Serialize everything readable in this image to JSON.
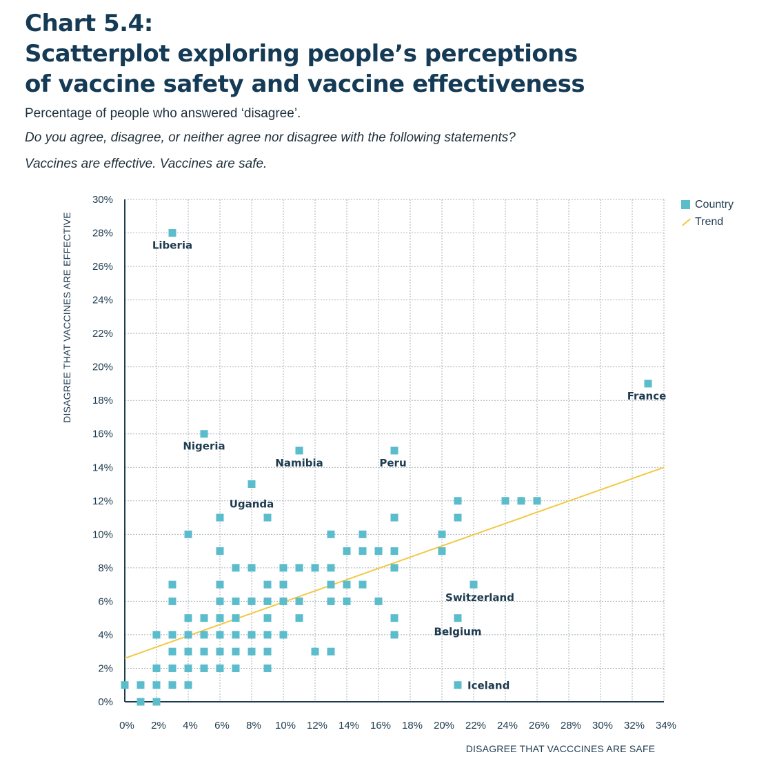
{
  "header": {
    "chart_number": "Chart 5.4:",
    "title_line1": "Scatterplot exploring people’s perceptions",
    "title_line2": "of vaccine safety and vaccine effectiveness",
    "subtitle": "Percentage of people who answered ‘disagree’.",
    "question": "Do you agree, disagree, or neither agree nor disagree with the following statements?",
    "statements": "Vaccines are effective. Vaccines are safe."
  },
  "legend": {
    "country": "Country",
    "trend": "Trend"
  },
  "colors": {
    "point": "#5bbccb",
    "trend": "#f2c844",
    "grid": "#a9b2b9",
    "axis": "#1d3a4f"
  },
  "chart_data": {
    "type": "scatter",
    "xlabel": "DISAGREE THAT VACCCINES ARE SAFE",
    "ylabel": "DISAGREE THAT VACCINES ARE EFFECTIVE",
    "xlim": [
      0,
      34
    ],
    "ylim": [
      0,
      30
    ],
    "x_ticks": [
      "0%",
      "2%",
      "4%",
      "6%",
      "8%",
      "10%",
      "12%",
      "14%",
      "16%",
      "18%",
      "20%",
      "22%",
      "24%",
      "26%",
      "28%",
      "30%",
      "32%",
      "34%"
    ],
    "y_ticks": [
      "0%",
      "2%",
      "4%",
      "6%",
      "8%",
      "10%",
      "12%",
      "14%",
      "16%",
      "18%",
      "20%",
      "22%",
      "24%",
      "26%",
      "28%",
      "30%"
    ],
    "grid": true,
    "legend_position": "top-right",
    "series": [
      {
        "name": "Country",
        "points": [
          [
            0,
            1
          ],
          [
            1,
            1
          ],
          [
            2,
            1
          ],
          [
            3,
            1
          ],
          [
            4,
            1
          ],
          [
            1,
            0
          ],
          [
            2,
            0
          ],
          [
            2,
            2
          ],
          [
            3,
            2
          ],
          [
            4,
            2
          ],
          [
            5,
            2
          ],
          [
            6,
            2
          ],
          [
            7,
            2
          ],
          [
            9,
            2
          ],
          [
            3,
            3
          ],
          [
            4,
            3
          ],
          [
            5,
            3
          ],
          [
            6,
            3
          ],
          [
            7,
            3
          ],
          [
            8,
            3
          ],
          [
            9,
            3
          ],
          [
            12,
            3
          ],
          [
            13,
            3
          ],
          [
            2,
            4
          ],
          [
            3,
            4
          ],
          [
            4,
            4
          ],
          [
            5,
            4
          ],
          [
            6,
            4
          ],
          [
            7,
            4
          ],
          [
            8,
            4
          ],
          [
            9,
            4
          ],
          [
            10,
            4
          ],
          [
            17,
            4
          ],
          [
            4,
            5
          ],
          [
            5,
            5
          ],
          [
            6,
            5
          ],
          [
            7,
            5
          ],
          [
            9,
            5
          ],
          [
            11,
            5
          ],
          [
            17,
            5
          ],
          [
            21,
            5
          ],
          [
            3,
            6
          ],
          [
            6,
            6
          ],
          [
            7,
            6
          ],
          [
            8,
            6
          ],
          [
            9,
            6
          ],
          [
            10,
            6
          ],
          [
            11,
            6
          ],
          [
            13,
            6
          ],
          [
            14,
            6
          ],
          [
            16,
            6
          ],
          [
            3,
            7
          ],
          [
            6,
            7
          ],
          [
            9,
            7
          ],
          [
            10,
            7
          ],
          [
            13,
            7
          ],
          [
            14,
            7
          ],
          [
            15,
            7
          ],
          [
            22,
            7
          ],
          [
            7,
            8
          ],
          [
            8,
            8
          ],
          [
            10,
            8
          ],
          [
            11,
            8
          ],
          [
            12,
            8
          ],
          [
            13,
            8
          ],
          [
            17,
            8
          ],
          [
            6,
            9
          ],
          [
            14,
            9
          ],
          [
            15,
            9
          ],
          [
            16,
            9
          ],
          [
            17,
            9
          ],
          [
            20,
            9
          ],
          [
            4,
            10
          ],
          [
            13,
            10
          ],
          [
            15,
            10
          ],
          [
            20,
            10
          ],
          [
            6,
            11
          ],
          [
            9,
            11
          ],
          [
            17,
            11
          ],
          [
            21,
            11
          ],
          [
            21,
            12
          ],
          [
            24,
            12
          ],
          [
            25,
            12
          ],
          [
            26,
            12
          ],
          [
            8,
            13
          ],
          [
            11,
            15
          ],
          [
            17,
            15
          ],
          [
            5,
            16
          ],
          [
            3,
            28
          ],
          [
            33,
            19
          ],
          [
            21,
            1
          ]
        ]
      }
    ],
    "trend": {
      "name": "Trend",
      "x": [
        0,
        34
      ],
      "y": [
        2.6,
        14
      ]
    },
    "annotations": [
      {
        "text": "Liberia",
        "x": 3,
        "y": 28
      },
      {
        "text": "France",
        "x": 33,
        "y": 19
      },
      {
        "text": "Nigeria",
        "x": 5,
        "y": 16
      },
      {
        "text": "Namibia",
        "x": 11,
        "y": 15
      },
      {
        "text": "Peru",
        "x": 17,
        "y": 15
      },
      {
        "text": "Uganda",
        "x": 8,
        "y": 13
      },
      {
        "text": "Switzerland",
        "x": 22,
        "y": 7
      },
      {
        "text": "Belgium",
        "x": 21,
        "y": 5
      },
      {
        "text": "Iceland",
        "x": 21,
        "y": 1
      }
    ]
  }
}
